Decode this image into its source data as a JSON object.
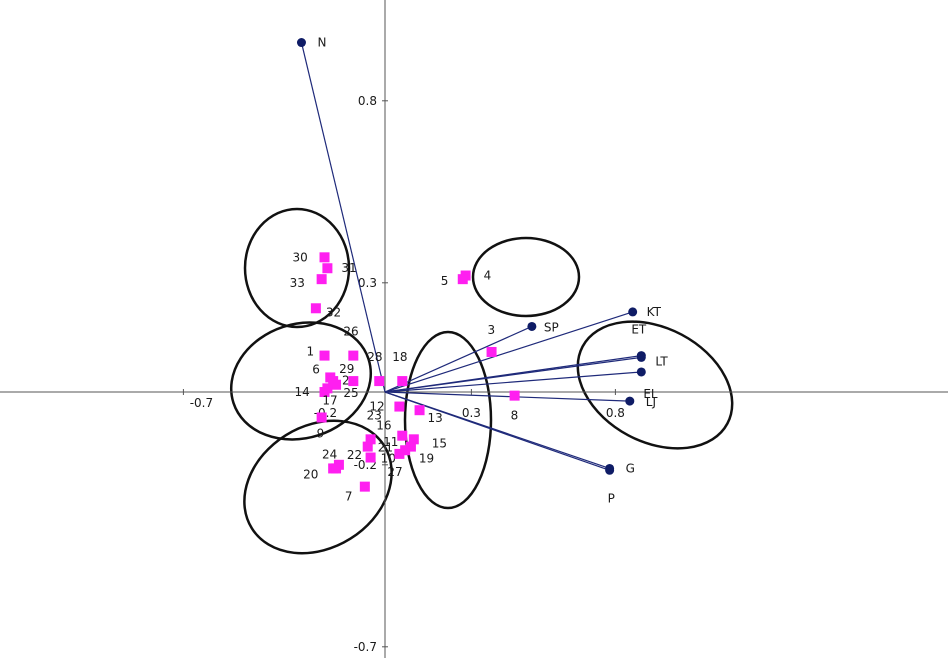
{
  "chart_data": {
    "type": "scatter",
    "title": "",
    "xlabel": "",
    "ylabel": "",
    "xlim": [
      -0.7,
      0.95
    ],
    "ylim": [
      -0.7,
      0.95
    ],
    "x_ticks": [
      {
        "value": -0.7,
        "label": "-0.7"
      },
      {
        "value": -0.2,
        "label": "-0.2"
      },
      {
        "value": 0.3,
        "label": "0.3"
      },
      {
        "value": 0.8,
        "label": "0.8"
      }
    ],
    "y_ticks": [
      {
        "value": 0.8,
        "label": "0.8"
      },
      {
        "value": 0.3,
        "label": "0.3"
      },
      {
        "value": -0.2,
        "label": "-0.2"
      },
      {
        "value": -0.7,
        "label": "-0.7"
      }
    ],
    "colors": {
      "points": "#ff1ff0",
      "vectors": "#1f2a7a",
      "vector_dots": "#0f1c66",
      "ellipses": "#111111",
      "axes": "#555555"
    },
    "vectors": [
      {
        "label": "N",
        "x": -0.29,
        "y": 0.96
      },
      {
        "label": "KT",
        "x": 0.86,
        "y": 0.22
      },
      {
        "label": "ET",
        "x": 0.89,
        "y": 0.1
      },
      {
        "label": "LT",
        "x": 0.89,
        "y": 0.095
      },
      {
        "label": "EL",
        "x": 0.89,
        "y": 0.055
      },
      {
        "label": "SP",
        "x": 0.51,
        "y": 0.18
      },
      {
        "label": "LJ",
        "x": 0.85,
        "y": -0.025
      },
      {
        "label": "G",
        "x": 0.78,
        "y": -0.21
      },
      {
        "label": "P",
        "x": 0.78,
        "y": -0.215
      }
    ],
    "points": [
      {
        "label": "1",
        "x": -0.21,
        "y": 0.1
      },
      {
        "label": "2",
        "x": -0.17,
        "y": 0.02
      },
      {
        "label": "3",
        "x": 0.37,
        "y": 0.11
      },
      {
        "label": "4",
        "x": 0.28,
        "y": 0.32
      },
      {
        "label": "5",
        "x": 0.27,
        "y": 0.31
      },
      {
        "label": "6",
        "x": -0.19,
        "y": 0.04
      },
      {
        "label": "7",
        "x": -0.07,
        "y": -0.26
      },
      {
        "label": "8",
        "x": 0.45,
        "y": -0.01
      },
      {
        "label": "9",
        "x": -0.22,
        "y": -0.07
      },
      {
        "label": "10",
        "x": -0.05,
        "y": -0.18
      },
      {
        "label": "11",
        "x": 0.07,
        "y": -0.16
      },
      {
        "label": "12",
        "x": 0.05,
        "y": -0.04
      },
      {
        "label": "13",
        "x": 0.12,
        "y": -0.05
      },
      {
        "label": "14",
        "x": -0.21,
        "y": 0.0
      },
      {
        "label": "15",
        "x": 0.1,
        "y": -0.13
      },
      {
        "label": "16",
        "x": 0.06,
        "y": -0.12
      },
      {
        "label": "17",
        "x": -0.2,
        "y": 0.01
      },
      {
        "label": "18",
        "x": 0.06,
        "y": 0.03
      },
      {
        "label": "19",
        "x": 0.09,
        "y": -0.15
      },
      {
        "label": "20",
        "x": -0.18,
        "y": -0.21
      },
      {
        "label": "21",
        "x": -0.06,
        "y": -0.15
      },
      {
        "label": "22",
        "x": -0.16,
        "y": -0.2
      },
      {
        "label": "23",
        "x": -0.05,
        "y": -0.13
      },
      {
        "label": "24",
        "x": -0.17,
        "y": -0.21
      },
      {
        "label": "25",
        "x": -0.11,
        "y": 0.03
      },
      {
        "label": "26",
        "x": -0.11,
        "y": 0.1
      },
      {
        "label": "27",
        "x": 0.05,
        "y": -0.17
      },
      {
        "label": "28",
        "x": -0.02,
        "y": 0.03
      },
      {
        "label": "29",
        "x": -0.18,
        "y": 0.03
      },
      {
        "label": "30",
        "x": -0.21,
        "y": 0.37
      },
      {
        "label": "31",
        "x": -0.2,
        "y": 0.34
      },
      {
        "label": "32",
        "x": -0.24,
        "y": 0.23
      },
      {
        "label": "33",
        "x": -0.22,
        "y": 0.31
      }
    ]
  }
}
